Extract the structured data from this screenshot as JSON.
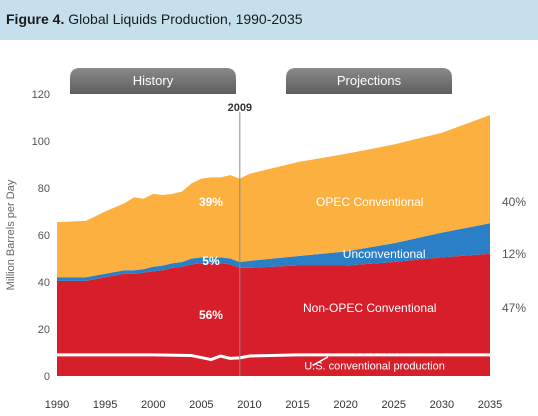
{
  "figure": {
    "number_label": "Figure 4.",
    "title": "Global Liquids Production, 1990-2035"
  },
  "banners": {
    "history": "History",
    "projections": "Projections"
  },
  "marker": {
    "label": "2009",
    "x": 2009
  },
  "chart_data": {
    "type": "area",
    "stacked": true,
    "title": "Global Liquids Production, 1990-2035",
    "xlabel": "",
    "ylabel": "Million Barrels per Day",
    "xlim": [
      1990,
      2035
    ],
    "ylim": [
      0,
      120
    ],
    "x_ticks": [
      1990,
      1995,
      2000,
      2005,
      2010,
      2015,
      2020,
      2025,
      2030,
      2035
    ],
    "y_ticks": [
      0,
      20,
      40,
      60,
      80,
      100,
      120
    ],
    "grid": false,
    "x": [
      1990,
      1993,
      1995,
      1997,
      1998,
      1999,
      2000,
      2001,
      2002,
      2003,
      2004,
      2005,
      2006,
      2007,
      2008,
      2009,
      2010,
      2015,
      2020,
      2025,
      2030,
      2035
    ],
    "series": [
      {
        "name": "Non-OPEC Conventional",
        "color": "#d61f2a",
        "values": [
          40.5,
          40.5,
          42,
          43.5,
          43.5,
          44,
          44.5,
          45,
          46,
          46.5,
          47.5,
          48,
          48,
          48,
          47.5,
          46,
          46,
          47,
          47,
          48.5,
          50.5,
          52
        ]
      },
      {
        "name": "Unconventional",
        "color": "#2a7fc6",
        "values": [
          1.5,
          1.5,
          1.5,
          1.5,
          1.5,
          1.5,
          2,
          2,
          2,
          2,
          2.5,
          2.5,
          2.5,
          2.5,
          2.5,
          2.5,
          3,
          4,
          6,
          8,
          10.5,
          13
        ]
      },
      {
        "name": "OPEC Conventional",
        "color": "#fbb040",
        "values": [
          23.5,
          24,
          26.5,
          28.5,
          31,
          30,
          31,
          30,
          29.5,
          30,
          32,
          33.5,
          34,
          34,
          35.5,
          35.5,
          37,
          40,
          41.5,
          42,
          42.5,
          46
        ]
      }
    ],
    "us_line": {
      "name": "U.S. conventional production",
      "color": "#ffffff",
      "x": [
        1990,
        1995,
        2000,
        2004,
        2006,
        2007,
        2008,
        2009,
        2010,
        2015,
        2020,
        2025,
        2030,
        2035
      ],
      "values": [
        9,
        9,
        9,
        8.7,
        7,
        8.5,
        7.5,
        7.7,
        8.5,
        9,
        9,
        9,
        9,
        9
      ]
    },
    "labels": [
      {
        "text": "39%",
        "x": 2006,
        "y": 74,
        "color": "#ffffff",
        "bold": true
      },
      {
        "text": "5%",
        "x": 2006,
        "y": 49,
        "color": "#ffffff",
        "bold": true
      },
      {
        "text": "56%",
        "x": 2006,
        "y": 26,
        "color": "#ffffff",
        "bold": true
      },
      {
        "text": "OPEC Conventional",
        "x": 2022.5,
        "y": 74,
        "color": "#ffffff",
        "bold": false
      },
      {
        "text": "Unconventional",
        "x": 2024,
        "y": 52,
        "color": "#ffffff",
        "bold": false
      },
      {
        "text": "Non-OPEC Conventional",
        "x": 2022.5,
        "y": 29,
        "color": "#ffffff",
        "bold": false
      }
    ],
    "right_labels": [
      {
        "text": "40%",
        "y": 74
      },
      {
        "text": "12%",
        "y": 52
      },
      {
        "text": "47%",
        "y": 29
      }
    ],
    "us_label": {
      "text": "U.S. conventional production",
      "x": 2023,
      "y": 4.5
    }
  }
}
